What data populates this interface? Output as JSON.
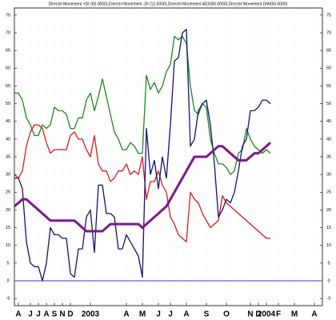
{
  "chart_data": {
    "type": "line",
    "title": "Directnl Movement +DI (50.0000),Directnl Movement -DI (12.0000),Directnl Movement ADX(50.0000),Directnl Movement DMI(50.0000)",
    "categories": [
      null,
      "A",
      null,
      null,
      "J",
      null,
      "J",
      null,
      "A",
      null,
      "S",
      null,
      "N",
      null,
      "D",
      null,
      null,
      null,
      null,
      "2003",
      null,
      null,
      null,
      null,
      null,
      null,
      null,
      null,
      "A",
      null,
      null,
      null,
      "M",
      null,
      null,
      null,
      "J",
      null,
      null,
      "J",
      null,
      null,
      null,
      "A",
      null,
      null,
      null,
      null,
      "S",
      null,
      null,
      null,
      null,
      "O",
      null,
      null,
      null,
      null,
      null,
      "N",
      null,
      "D",
      null,
      "2004",
      null,
      null,
      "F",
      null,
      null,
      null,
      "M",
      null,
      null,
      null,
      null,
      "A",
      null,
      null
    ],
    "series": [
      {
        "color": "#1a8a1a",
        "width": 1.3,
        "values": [
          53,
          53,
          51,
          46,
          44,
          41,
          41,
          44,
          43,
          44,
          49,
          48,
          48,
          47,
          43,
          43,
          46,
          46,
          51,
          53,
          48,
          52,
          57,
          52,
          47,
          42,
          40,
          37,
          37,
          39,
          38,
          36,
          36,
          58,
          54,
          56,
          53,
          55,
          59,
          61,
          69,
          68,
          69,
          67,
          55,
          48,
          47,
          50,
          49,
          40,
          36,
          33,
          33,
          32,
          30,
          31,
          36,
          37,
          43,
          40,
          38,
          37,
          36,
          37,
          36,
          null,
          null,
          null,
          null,
          null,
          null,
          null,
          null,
          null,
          null,
          null,
          null,
          null
        ]
      },
      {
        "color": "#e01a1a",
        "width": 1.3,
        "values": [
          30,
          29,
          31,
          38,
          42,
          44,
          44,
          43,
          39,
          36,
          37,
          37,
          37,
          37,
          41,
          42,
          40,
          40,
          37,
          35,
          41,
          33,
          31,
          31,
          28,
          29,
          31,
          31,
          33,
          30,
          31,
          30,
          35,
          23,
          28,
          28,
          31,
          27,
          25,
          18,
          16,
          13,
          12,
          11,
          25,
          23,
          22,
          19,
          17,
          15,
          16,
          17,
          24,
          22,
          21,
          20,
          19,
          18,
          17,
          16,
          15,
          14,
          13,
          12,
          12,
          null,
          null,
          null,
          null,
          null,
          null,
          null,
          null,
          null,
          null,
          null,
          null,
          null
        ]
      },
      {
        "color": "#12127a",
        "width": 1.3,
        "values": [
          29,
          29,
          26,
          11,
          5,
          4,
          4,
          0,
          5,
          15,
          13,
          13,
          12,
          12,
          2,
          1,
          9,
          9,
          18,
          20,
          8,
          27,
          27,
          19,
          19,
          18,
          9,
          9,
          13,
          11,
          9,
          7,
          1,
          43,
          30,
          34,
          26,
          35,
          29,
          44,
          62,
          63,
          70,
          71,
          38,
          40,
          48,
          50,
          51,
          44,
          33,
          18,
          20,
          23,
          22,
          25,
          31,
          38,
          40,
          48,
          48,
          49,
          51,
          51,
          50,
          null,
          null,
          null,
          null,
          null,
          null,
          null,
          null,
          null,
          null,
          null,
          null,
          null
        ]
      },
      {
        "color": "#7a1a8a",
        "width": 3,
        "values": [
          21,
          22,
          23,
          23,
          22,
          21,
          20,
          19,
          18,
          17,
          17,
          17,
          17,
          17,
          17,
          17,
          16,
          15,
          14,
          14,
          14,
          14,
          14,
          15,
          16,
          16,
          16,
          16,
          16,
          16,
          16,
          16,
          15,
          16,
          17,
          18,
          19,
          20,
          21,
          23,
          25,
          27,
          29,
          31,
          33,
          35,
          35,
          35,
          35,
          36,
          37,
          38,
          38,
          37,
          36,
          35,
          34,
          34,
          34,
          35,
          36,
          36,
          37,
          38,
          39,
          null,
          null,
          null,
          null,
          null,
          null,
          null,
          null,
          null,
          null,
          null,
          null,
          null
        ]
      }
    ],
    "reference_line": {
      "value": 0,
      "color": "#3a3acc"
    },
    "ylim": [
      -7,
      77
    ],
    "yticks": [
      -5,
      0,
      5,
      10,
      15,
      20,
      25,
      30,
      35,
      40,
      45,
      50,
      55,
      60,
      65,
      70,
      75
    ]
  }
}
